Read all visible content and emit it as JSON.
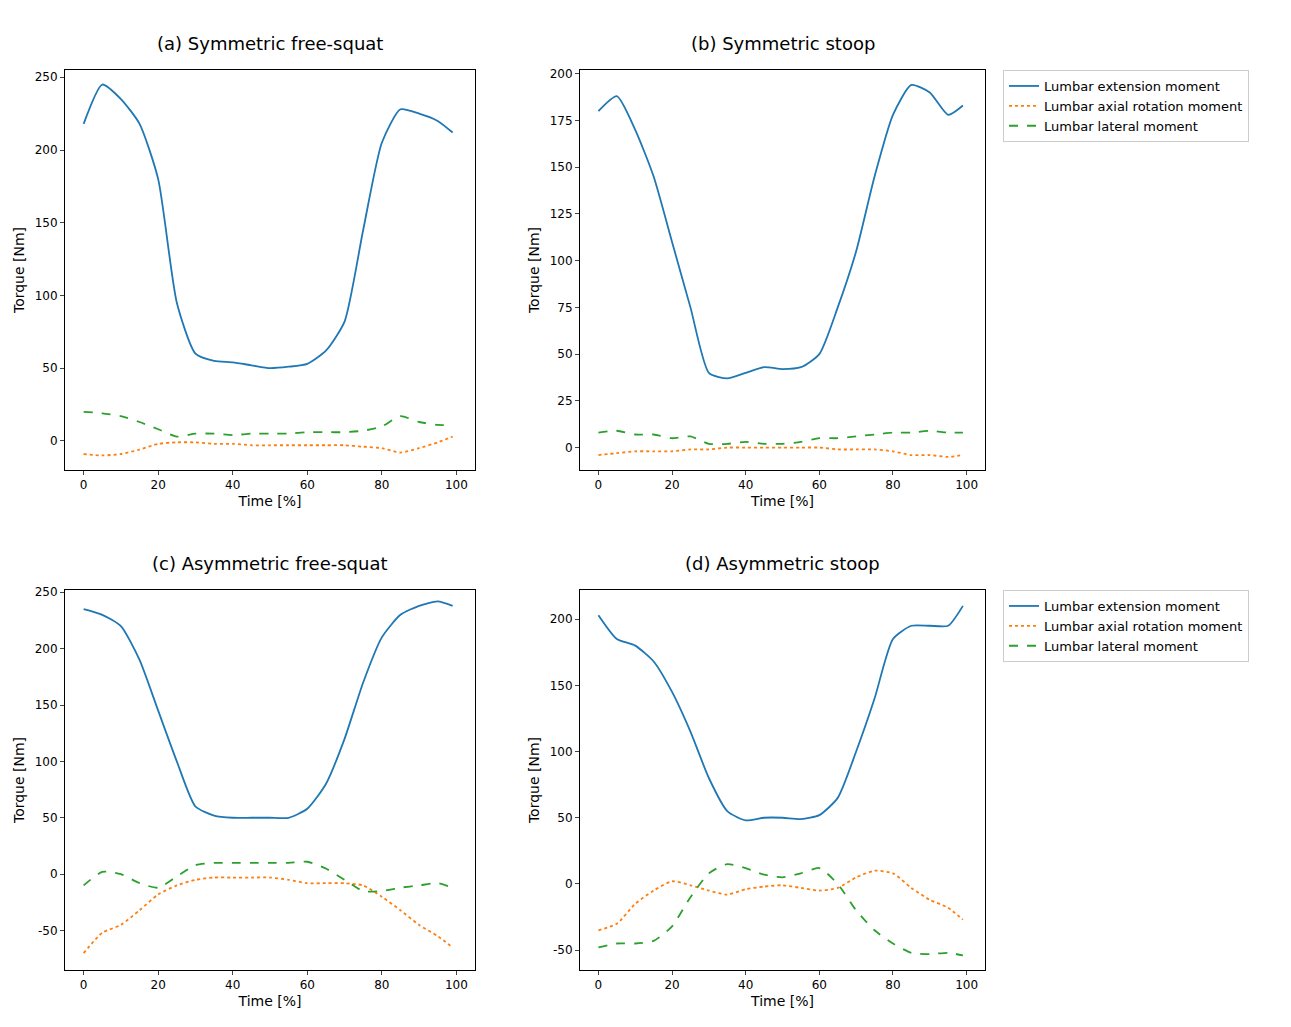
{
  "chart_data": [
    {
      "type": "line",
      "title": "(a) Symmetric free-squat",
      "x_label": "Time [%]",
      "y_label": "Torque [Nm]",
      "x": [
        0,
        5,
        10,
        15,
        20,
        25,
        30,
        35,
        40,
        45,
        50,
        55,
        60,
        65,
        70,
        75,
        80,
        85,
        90,
        95,
        99
      ],
      "series": [
        {
          "name": "Lumbar extension moment",
          "color": "#1f77b4",
          "line_style": "solid",
          "values": [
            218,
            245,
            235,
            218,
            180,
            95,
            60,
            55,
            54,
            52,
            50,
            51,
            53,
            62,
            82,
            145,
            205,
            228,
            225,
            220,
            212
          ]
        },
        {
          "name": "Lumbar axial rotation moment",
          "color": "#ff7f0e",
          "line_style": "dotted",
          "values": [
            -9,
            -10,
            -9,
            -6,
            -2,
            -1,
            -1,
            -2,
            -2,
            -3,
            -3,
            -3,
            -3,
            -3,
            -3,
            -4,
            -5,
            -8,
            -5,
            -1,
            3
          ]
        },
        {
          "name": "Lumbar lateral moment",
          "color": "#2ca02c",
          "line_style": "dashed",
          "values": [
            20,
            19,
            17,
            13,
            8,
            3,
            5,
            5,
            4,
            5,
            5,
            5,
            6,
            6,
            6,
            7,
            10,
            17,
            13,
            11,
            11
          ]
        }
      ],
      "xlim": [
        -5,
        105
      ],
      "ylim": [
        -20,
        255
      ],
      "xticks": [
        0,
        20,
        40,
        60,
        80,
        100
      ],
      "yticks": [
        0,
        50,
        100,
        150,
        200,
        250
      ],
      "grid": false
    },
    {
      "type": "line",
      "title": "(b) Symmetric stoop",
      "x_label": "Time [%]",
      "y_label": "Torque [Nm]",
      "x": [
        0,
        5,
        10,
        15,
        20,
        25,
        30,
        35,
        40,
        45,
        50,
        55,
        60,
        65,
        70,
        75,
        80,
        85,
        90,
        95,
        99
      ],
      "series": [
        {
          "name": "Lumbar extension moment",
          "color": "#1f77b4",
          "line_style": "solid",
          "values": [
            180,
            188,
            170,
            145,
            110,
            75,
            40,
            37,
            40,
            43,
            42,
            43,
            50,
            75,
            105,
            145,
            178,
            194,
            190,
            178,
            183
          ]
        },
        {
          "name": "Lumbar axial rotation moment",
          "color": "#ff7f0e",
          "line_style": "dotted",
          "values": [
            -4,
            -3,
            -2,
            -2,
            -2,
            -1,
            -1,
            0,
            0,
            0,
            0,
            0,
            0,
            -1,
            -1,
            -1,
            -2,
            -4,
            -4,
            -5,
            -4
          ]
        },
        {
          "name": "Lumbar lateral moment",
          "color": "#2ca02c",
          "line_style": "dashed",
          "values": [
            8,
            9,
            7,
            7,
            5,
            6,
            2,
            2,
            3,
            2,
            2,
            3,
            5,
            5,
            6,
            7,
            8,
            8,
            9,
            8,
            8
          ]
        }
      ],
      "xlim": [
        -5,
        105
      ],
      "ylim": [
        -12,
        202
      ],
      "xticks": [
        0,
        20,
        40,
        60,
        80,
        100
      ],
      "yticks": [
        0,
        25,
        50,
        75,
        100,
        125,
        150,
        175,
        200
      ],
      "grid": false,
      "legend": "right"
    },
    {
      "type": "line",
      "title": "(c) Asymmetric free-squat",
      "x_label": "Time [%]",
      "y_label": "Torque [Nm]",
      "x": [
        0,
        5,
        10,
        15,
        20,
        25,
        30,
        35,
        40,
        45,
        50,
        55,
        60,
        65,
        70,
        75,
        80,
        85,
        90,
        95,
        99
      ],
      "series": [
        {
          "name": "Lumbar extension moment",
          "color": "#1f77b4",
          "line_style": "solid",
          "values": [
            235,
            230,
            220,
            190,
            145,
            100,
            60,
            52,
            50,
            50,
            50,
            50,
            58,
            80,
            120,
            170,
            210,
            230,
            238,
            242,
            238
          ]
        },
        {
          "name": "Lumbar axial rotation moment",
          "color": "#ff7f0e",
          "line_style": "dotted",
          "values": [
            -70,
            -52,
            -45,
            -32,
            -18,
            -10,
            -5,
            -3,
            -3,
            -3,
            -3,
            -5,
            -8,
            -8,
            -8,
            -10,
            -20,
            -32,
            -45,
            -55,
            -65
          ]
        },
        {
          "name": "Lumbar lateral moment",
          "color": "#2ca02c",
          "line_style": "dashed",
          "values": [
            -10,
            2,
            0,
            -8,
            -12,
            -2,
            8,
            10,
            10,
            10,
            10,
            10,
            11,
            5,
            -5,
            -15,
            -15,
            -12,
            -10,
            -8,
            -12
          ]
        }
      ],
      "xlim": [
        -5,
        105
      ],
      "ylim": [
        -85,
        252
      ],
      "xticks": [
        0,
        20,
        40,
        60,
        80,
        100
      ],
      "yticks": [
        -50,
        0,
        50,
        100,
        150,
        200,
        250
      ],
      "grid": false
    },
    {
      "type": "line",
      "title": "(d) Asymmetric stoop",
      "x_label": "Time [%]",
      "y_label": "Torque [Nm]",
      "x": [
        0,
        5,
        10,
        15,
        20,
        25,
        30,
        35,
        40,
        45,
        50,
        55,
        60,
        65,
        70,
        75,
        80,
        85,
        90,
        95,
        99
      ],
      "series": [
        {
          "name": "Lumbar extension moment",
          "color": "#1f77b4",
          "line_style": "solid",
          "values": [
            203,
            185,
            180,
            168,
            145,
            115,
            80,
            55,
            48,
            50,
            50,
            49,
            52,
            65,
            100,
            140,
            185,
            195,
            195,
            195,
            210
          ]
        },
        {
          "name": "Lumbar axial rotation moment",
          "color": "#ff7f0e",
          "line_style": "dotted",
          "values": [
            -35,
            -30,
            -15,
            -5,
            2,
            -1,
            -5,
            -8,
            -4,
            -2,
            -1,
            -3,
            -5,
            -3,
            5,
            10,
            8,
            -3,
            -12,
            -18,
            -27
          ]
        },
        {
          "name": "Lumbar lateral moment",
          "color": "#2ca02c",
          "line_style": "dashed",
          "values": [
            -48,
            -45,
            -45,
            -43,
            -32,
            -10,
            8,
            15,
            12,
            7,
            5,
            8,
            12,
            0,
            -20,
            -35,
            -45,
            -52,
            -53,
            -52,
            -54
          ]
        }
      ],
      "xlim": [
        -5,
        105
      ],
      "ylim": [
        -65,
        222
      ],
      "xticks": [
        0,
        20,
        40,
        60,
        80,
        100
      ],
      "yticks": [
        -50,
        0,
        50,
        100,
        150,
        200
      ],
      "grid": false,
      "legend": "right"
    }
  ]
}
